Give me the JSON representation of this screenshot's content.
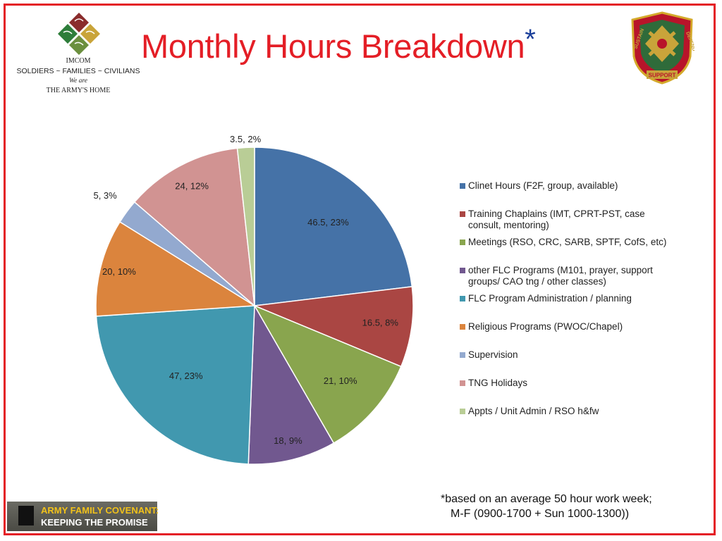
{
  "header": {
    "title": "Monthly Hours Breakdown",
    "title_asterisk": "*",
    "org_line1": "IMCOM",
    "org_line2": "SOLDIERS ~ FAMILIES ~ CIVILIANS",
    "org_line3": "We are",
    "org_line4": "THE ARMY'S HOME",
    "crest_motto_left": "SUSTAIN",
    "crest_motto_bottom": "SUPPORT",
    "crest_motto_right": "DEFEND"
  },
  "colors": {
    "frame": "#e41e26",
    "title": "#e41e26",
    "asterisk": "#1b3f9a"
  },
  "chart_data": {
    "type": "pie",
    "title": "",
    "series": [
      {
        "values": [
          46.5,
          16.5,
          21,
          18,
          47,
          20,
          5,
          24,
          3.5
        ],
        "percent_labels": [
          "23%",
          "8%",
          "10%",
          "9%",
          "23%",
          "10%",
          "3%",
          "12%",
          "2%"
        ]
      }
    ],
    "categories": [
      "Clinet Hours (F2F, group, available)",
      "Training Chaplains (IMT, CPRT-PST, case consult, mentoring)",
      "Meetings (RSO, CRC, SARB, SPTF, CofS, etc)",
      "other FLC Programs (M101, prayer, support groups/ CAO tng / other classes)",
      "FLC Program Administration / planning",
      "Religious Programs (PWOC/Chapel)",
      "Supervision",
      "TNG Holidays",
      "Appts / Unit Admin / RSO h&fw"
    ],
    "data_labels": [
      "46.5, 23%",
      "16.5, 8%",
      "21, 10%",
      "18, 9%",
      "47, 23%",
      "20, 10%",
      "5, 3%",
      "24, 12%",
      "3.5, 2%"
    ],
    "colors": [
      "#4572a7",
      "#aa4643",
      "#89a54e",
      "#71588f",
      "#4198af",
      "#db843d",
      "#93a9cf",
      "#d19392",
      "#b9cd96"
    ],
    "legend_position": "right"
  },
  "footnote": {
    "line1": "*based on an average 50 hour work week;",
    "line2": "M-F (0900-1700 + Sun 1000-1300))"
  },
  "banner": {
    "line1": "ARMY FAMILY COVENANT:",
    "line2": "KEEPING THE PROMISE"
  }
}
